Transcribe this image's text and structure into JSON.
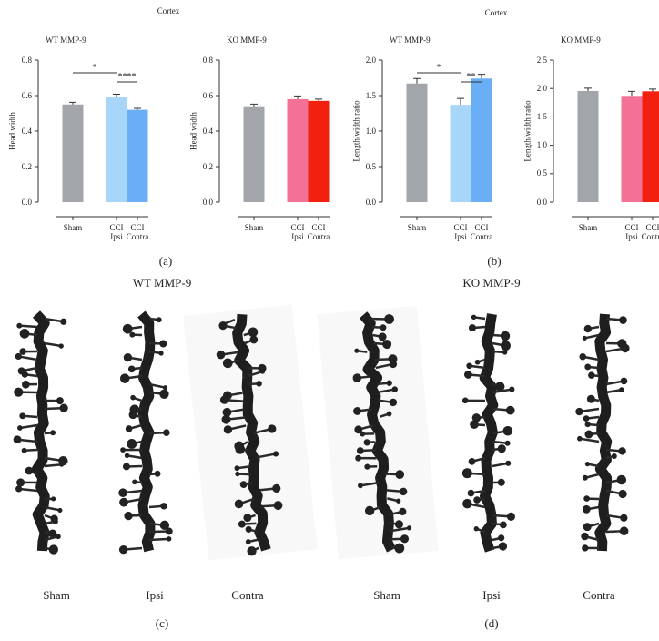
{
  "chart_data": [
    {
      "type": "bar",
      "title": "WT MMP-9",
      "y_label": "Head width",
      "categories": [
        "Sham",
        "CCI Ipsi",
        "CCI Contra"
      ],
      "values": [
        0.55,
        0.59,
        0.52
      ],
      "errors": [
        0.012,
        0.018,
        0.008
      ],
      "colors": [
        "#a2a6aa",
        "#a8d6f8",
        "#6aaef5"
      ],
      "ylim": [
        0,
        0.8
      ],
      "yticks": [
        {
          "value": 0,
          "label": "0.0"
        },
        0.2,
        0.4,
        0.6,
        0.8
      ],
      "annotations": [
        {
          "label": "*",
          "from": 0,
          "to": 1
        },
        {
          "label": "****",
          "from": 1,
          "to": 2
        }
      ]
    },
    {
      "type": "bar",
      "title": "KO MMP-9",
      "y_label": "Head width",
      "categories": [
        "Sham",
        "CCI Ipsi",
        "CCI Contra"
      ],
      "values": [
        0.54,
        0.58,
        0.57
      ],
      "errors": [
        0.012,
        0.018,
        0.01
      ],
      "colors": [
        "#a2a6aa",
        "#f27195",
        "#f2200e"
      ],
      "ylim": [
        0,
        0.8
      ],
      "yticks": [
        {
          "value": 0,
          "label": "0.0"
        },
        0.2,
        0.4,
        0.6,
        0.8
      ],
      "annotations": []
    },
    {
      "type": "bar",
      "title": "WT MMP-9",
      "y_label": "Length/width ratio",
      "categories": [
        "Sham",
        "CCI Ipsi",
        "CCI Contra"
      ],
      "values": [
        1.67,
        1.37,
        1.74
      ],
      "errors": [
        0.07,
        0.09,
        0.06
      ],
      "colors": [
        "#a2a6aa",
        "#a8d6f8",
        "#6aaef5"
      ],
      "ylim": [
        0,
        2
      ],
      "yticks": [
        {
          "value": 0,
          "label": "0.0"
        },
        0.5,
        {
          "value": 1,
          "label": "1.0"
        },
        1.5,
        {
          "value": 2,
          "label": "2.0"
        }
      ],
      "annotations": [
        {
          "label": "*",
          "from": 0,
          "to": 1
        },
        {
          "label": "**",
          "from": 1,
          "to": 2
        }
      ]
    },
    {
      "type": "bar",
      "title": "KO MMP-9",
      "y_label": "Length/width ratio",
      "categories": [
        "Sham",
        "CCI Ipsi",
        "CCI Contra"
      ],
      "values": [
        1.955,
        1.87,
        1.95
      ],
      "errors": [
        0.05,
        0.08,
        0.04
      ],
      "colors": [
        "#a2a6aa",
        "#f27195",
        "#f2200e"
      ],
      "ylim": [
        0,
        2.5
      ],
      "yticks": [
        {
          "value": 0,
          "label": "0.0"
        },
        0.5,
        {
          "value": 1,
          "label": "1.0"
        },
        1.5,
        {
          "value": 2,
          "label": "2.0"
        },
        2.5
      ],
      "annotations": []
    }
  ],
  "region_titles": [
    "Cortex",
    "Cortex"
  ],
  "panel_labels": [
    "(a)",
    "(b)",
    "(c)",
    "(d)"
  ],
  "image_groups": [
    {
      "title": "WT MMP-9",
      "labels": [
        "Sham",
        "Ipsi",
        "Contra"
      ]
    },
    {
      "title": "KO MMP-9",
      "labels": [
        "Sham",
        "Ipsi",
        "Contra"
      ]
    }
  ]
}
